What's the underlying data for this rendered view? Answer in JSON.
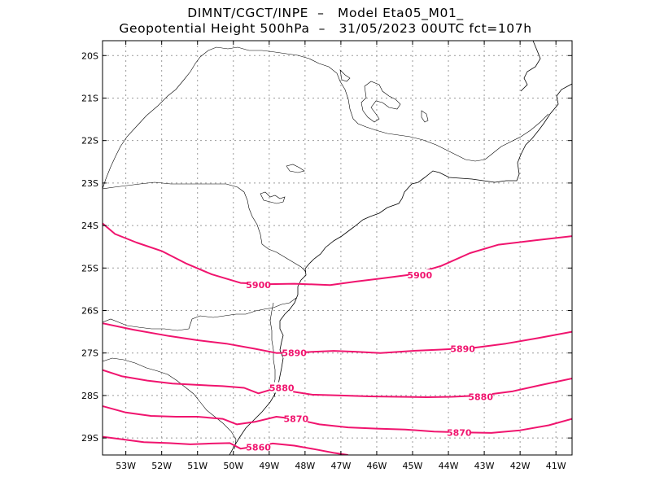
{
  "title": {
    "line1": "DIMNT/CGCT/INPE  –   Model Eta05_M01_",
    "line2": "Geopotential Height 500hPa  –   31/05/2023 00UTC fct=107h"
  },
  "colors": {
    "contour": "#f0146e",
    "coast": "#000000",
    "grid": "#9a9a9a",
    "frame": "#000000"
  },
  "map": {
    "lon_range": [
      -53.65,
      -40.55
    ],
    "lat_range": [
      -29.4,
      -19.65
    ],
    "lon_ticks": [
      {
        "value": -53,
        "label": "53W"
      },
      {
        "value": -52,
        "label": "52W"
      },
      {
        "value": -51,
        "label": "51W"
      },
      {
        "value": -50,
        "label": "50W"
      },
      {
        "value": -49,
        "label": "49W"
      },
      {
        "value": -48,
        "label": "48W"
      },
      {
        "value": -47,
        "label": "47W"
      },
      {
        "value": -46,
        "label": "46W"
      },
      {
        "value": -45,
        "label": "45W"
      },
      {
        "value": -44,
        "label": "44W"
      },
      {
        "value": -43,
        "label": "43W"
      },
      {
        "value": -42,
        "label": "42W"
      },
      {
        "value": -41,
        "label": "41W"
      }
    ],
    "lat_ticks": [
      {
        "value": -20,
        "label": "20S"
      },
      {
        "value": -21,
        "label": "21S"
      },
      {
        "value": -22,
        "label": "22S"
      },
      {
        "value": -23,
        "label": "23S"
      },
      {
        "value": -24,
        "label": "24S"
      },
      {
        "value": -25,
        "label": "25S"
      },
      {
        "value": -26,
        "label": "26S"
      },
      {
        "value": -27,
        "label": "27S"
      },
      {
        "value": -28,
        "label": "28S"
      },
      {
        "value": -29,
        "label": "29S"
      }
    ],
    "contours": [
      {
        "value": 5900,
        "unit": "gpm",
        "points": [
          [
            -53.65,
            -23.95
          ],
          [
            -53.3,
            -24.2
          ],
          [
            -52.7,
            -24.4
          ],
          [
            -52.0,
            -24.6
          ],
          [
            -51.3,
            -24.9
          ],
          [
            -50.6,
            -25.15
          ],
          [
            -49.8,
            -25.35
          ],
          [
            -49.0,
            -25.38
          ],
          [
            -48.3,
            -25.37
          ],
          [
            -47.3,
            -25.4
          ],
          [
            -46.6,
            -25.32
          ],
          [
            -45.9,
            -25.25
          ],
          [
            -45.0,
            -25.15
          ],
          [
            -44.2,
            -24.95
          ],
          [
            -43.4,
            -24.65
          ],
          [
            -42.6,
            -24.45
          ],
          [
            -41.6,
            -24.35
          ],
          [
            -40.55,
            -24.25
          ]
        ],
        "labels": [
          {
            "text": "5900",
            "lon": -49.3,
            "lat": -25.4
          },
          {
            "text": "5900",
            "lon": -44.8,
            "lat": -25.17
          }
        ]
      },
      {
        "value": 5890,
        "unit": "gpm",
        "points": [
          [
            -53.65,
            -26.3
          ],
          [
            -52.8,
            -26.45
          ],
          [
            -51.8,
            -26.6
          ],
          [
            -51.0,
            -26.7
          ],
          [
            -50.2,
            -26.78
          ],
          [
            -49.4,
            -26.9
          ],
          [
            -48.8,
            -27.0
          ],
          [
            -48.0,
            -26.98
          ],
          [
            -47.2,
            -26.95
          ],
          [
            -46.6,
            -26.97
          ],
          [
            -45.9,
            -27.0
          ],
          [
            -45.0,
            -26.95
          ],
          [
            -44.2,
            -26.92
          ],
          [
            -43.3,
            -26.88
          ],
          [
            -42.4,
            -26.78
          ],
          [
            -41.5,
            -26.65
          ],
          [
            -40.55,
            -26.5
          ]
        ],
        "labels": [
          {
            "text": "5890",
            "lon": -48.3,
            "lat": -27.0
          },
          {
            "text": "5890",
            "lon": -43.6,
            "lat": -26.9
          }
        ]
      },
      {
        "value": 5880,
        "unit": "gpm",
        "points": [
          [
            -53.65,
            -27.4
          ],
          [
            -53.1,
            -27.55
          ],
          [
            -52.4,
            -27.65
          ],
          [
            -51.7,
            -27.72
          ],
          [
            -51.0,
            -27.75
          ],
          [
            -50.3,
            -27.78
          ],
          [
            -49.7,
            -27.82
          ],
          [
            -49.3,
            -27.95
          ],
          [
            -48.9,
            -27.85
          ],
          [
            -48.4,
            -27.9
          ],
          [
            -47.8,
            -27.98
          ],
          [
            -47.0,
            -28.0
          ],
          [
            -46.2,
            -28.02
          ],
          [
            -45.4,
            -28.03
          ],
          [
            -44.6,
            -28.04
          ],
          [
            -43.9,
            -28.03
          ],
          [
            -43.1,
            -28.0
          ],
          [
            -42.2,
            -27.9
          ],
          [
            -41.4,
            -27.75
          ],
          [
            -40.55,
            -27.6
          ]
        ],
        "labels": [
          {
            "text": "5880",
            "lon": -48.65,
            "lat": -27.82
          },
          {
            "text": "5880",
            "lon": -43.1,
            "lat": -28.03
          }
        ]
      },
      {
        "value": 5870,
        "unit": "gpm",
        "points": [
          [
            -53.65,
            -28.25
          ],
          [
            -53.0,
            -28.4
          ],
          [
            -52.3,
            -28.48
          ],
          [
            -51.6,
            -28.5
          ],
          [
            -51.0,
            -28.5
          ],
          [
            -50.3,
            -28.55
          ],
          [
            -49.9,
            -28.68
          ],
          [
            -49.4,
            -28.62
          ],
          [
            -48.8,
            -28.5
          ],
          [
            -48.3,
            -28.55
          ],
          [
            -47.6,
            -28.68
          ],
          [
            -46.8,
            -28.75
          ],
          [
            -46.0,
            -28.78
          ],
          [
            -45.2,
            -28.8
          ],
          [
            -44.4,
            -28.85
          ],
          [
            -43.6,
            -28.87
          ],
          [
            -42.8,
            -28.88
          ],
          [
            -42.0,
            -28.82
          ],
          [
            -41.2,
            -28.7
          ],
          [
            -40.55,
            -28.55
          ]
        ],
        "labels": [
          {
            "text": "5870",
            "lon": -48.25,
            "lat": -28.55
          },
          {
            "text": "5870",
            "lon": -43.7,
            "lat": -28.87
          }
        ]
      },
      {
        "value": 5860,
        "unit": "gpm",
        "points": [
          [
            -53.65,
            -28.97
          ],
          [
            -53.1,
            -29.03
          ],
          [
            -52.5,
            -29.1
          ],
          [
            -51.8,
            -29.12
          ],
          [
            -51.2,
            -29.15
          ],
          [
            -50.6,
            -29.13
          ],
          [
            -50.1,
            -29.12
          ],
          [
            -49.8,
            -29.25
          ],
          [
            -49.4,
            -29.2
          ],
          [
            -48.9,
            -29.13
          ],
          [
            -48.3,
            -29.18
          ],
          [
            -47.7,
            -29.27
          ],
          [
            -47.2,
            -29.35
          ],
          [
            -46.8,
            -29.4
          ]
        ],
        "labels": [
          {
            "text": "5860",
            "lon": -49.3,
            "lat": -29.22
          }
        ]
      }
    ]
  }
}
